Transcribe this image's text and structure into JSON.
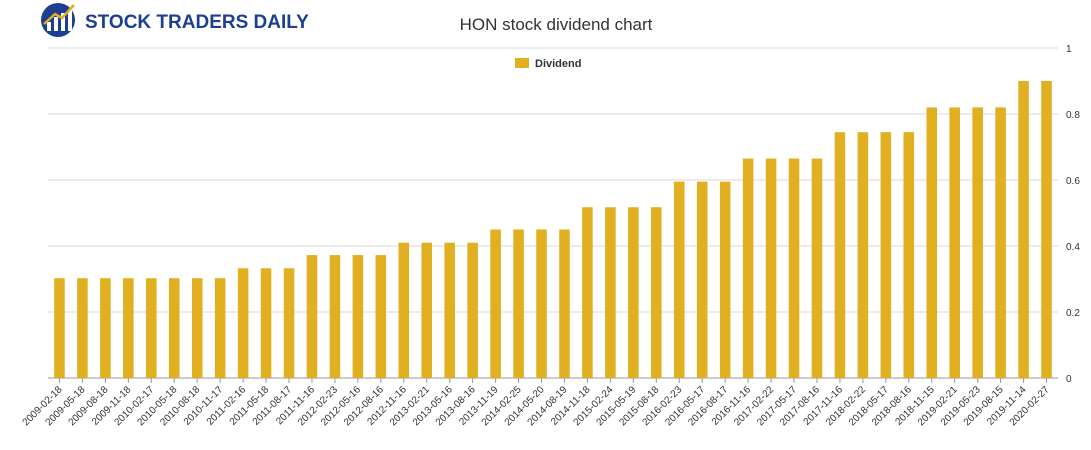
{
  "brand": {
    "name": "STOCK TRADERS DAILY"
  },
  "colors": {
    "bar": "#e0b020",
    "grid": "#d9d9d9",
    "axis": "#999999",
    "brand_blue": "#1d3f8f"
  },
  "chart_data": {
    "type": "bar",
    "title": "HON stock dividend chart",
    "xlabel": "",
    "ylabel": "",
    "ylim": [
      0,
      1
    ],
    "yticks": [
      0,
      0.2,
      0.4,
      0.6,
      0.8,
      1
    ],
    "grid": true,
    "legend": "top-center",
    "categories": [
      "2009-02-18",
      "2009-05-18",
      "2009-08-18",
      "2009-11-18",
      "2010-02-17",
      "2010-05-18",
      "2010-08-18",
      "2010-11-17",
      "2011-02-16",
      "2011-05-18",
      "2011-08-17",
      "2011-11-16",
      "2012-02-23",
      "2012-05-16",
      "2012-08-16",
      "2012-11-16",
      "2013-02-21",
      "2013-05-16",
      "2013-08-16",
      "2013-11-19",
      "2014-02-25",
      "2014-05-20",
      "2014-08-19",
      "2014-11-18",
      "2015-02-24",
      "2015-05-19",
      "2015-08-18",
      "2016-02-23",
      "2016-05-17",
      "2016-08-17",
      "2016-11-16",
      "2017-02-22",
      "2017-05-17",
      "2017-08-16",
      "2017-11-16",
      "2018-02-22",
      "2018-05-17",
      "2018-08-16",
      "2018-11-15",
      "2019-02-21",
      "2019-05-23",
      "2019-08-15",
      "2019-11-14",
      "2020-02-27"
    ],
    "series": [
      {
        "name": "Dividend",
        "values": [
          0.3025,
          0.3025,
          0.3025,
          0.3025,
          0.3025,
          0.3025,
          0.3025,
          0.3025,
          0.3325,
          0.3325,
          0.3325,
          0.3725,
          0.3725,
          0.3725,
          0.3725,
          0.41,
          0.41,
          0.41,
          0.41,
          0.45,
          0.45,
          0.45,
          0.45,
          0.5175,
          0.5175,
          0.5175,
          0.5175,
          0.595,
          0.595,
          0.595,
          0.665,
          0.665,
          0.665,
          0.665,
          0.745,
          0.745,
          0.745,
          0.745,
          0.82,
          0.82,
          0.82,
          0.82,
          0.9,
          0.9
        ]
      }
    ]
  }
}
